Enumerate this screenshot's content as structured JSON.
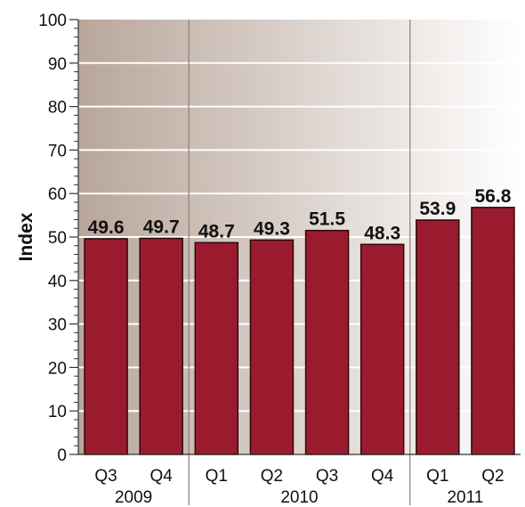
{
  "chart_data": {
    "type": "bar",
    "categories": [
      "Q3",
      "Q4",
      "Q1",
      "Q2",
      "Q3",
      "Q4",
      "Q1",
      "Q2"
    ],
    "groups": [
      {
        "label": "2009",
        "count": 2
      },
      {
        "label": "2010",
        "count": 4
      },
      {
        "label": "2011",
        "count": 2
      }
    ],
    "values": [
      49.6,
      49.7,
      48.7,
      49.3,
      51.5,
      48.3,
      53.9,
      56.8
    ],
    "value_labels": [
      "49.6",
      "49.7",
      "48.7",
      "49.3",
      "51.5",
      "48.3",
      "53.9",
      "56.8"
    ],
    "ylabel": "Index",
    "ylim": [
      0,
      100
    ],
    "yticks": [
      0,
      10,
      20,
      30,
      40,
      50,
      60,
      70,
      80,
      90,
      100
    ],
    "grid": true,
    "colors": {
      "bar": "#9b1b2e",
      "bar_edge": "#2a0a0f",
      "bg_left": "#b8a69a",
      "bg_right": "#ffffff",
      "grid": "#ffffff"
    }
  }
}
